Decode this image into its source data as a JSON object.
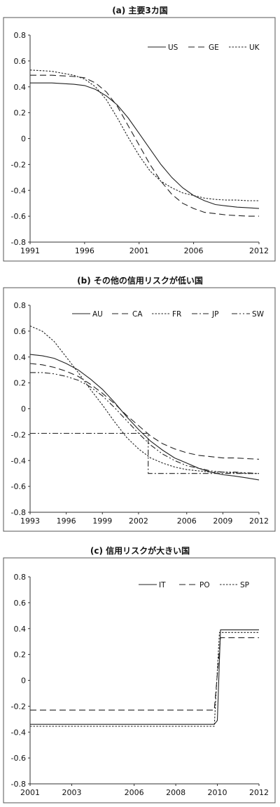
{
  "chart_data": [
    {
      "type": "line",
      "title": "(a) 主要3カ国",
      "xlabel": "",
      "ylabel": "",
      "xlim": [
        1991,
        2012
      ],
      "ylim": [
        -0.8,
        0.8
      ],
      "xticks": [
        "1991",
        "1996",
        "2001",
        "2006",
        "2012"
      ],
      "yticks": [
        "0.8",
        "0.6",
        "0.4",
        "0.2",
        "0",
        "-0.2",
        "-0.4",
        "-0.6",
        "-0.8"
      ],
      "legend": "top-right",
      "grid": false,
      "series": [
        {
          "name": "US",
          "style": "solid",
          "x": [
            1991,
            1993,
            1995,
            1996,
            1997,
            1998,
            1999,
            2000,
            2001,
            2002,
            2003,
            2004,
            2005,
            2006,
            2007,
            2008,
            2009,
            2010,
            2011,
            2012
          ],
          "y": [
            0.43,
            0.43,
            0.42,
            0.41,
            0.38,
            0.33,
            0.26,
            0.16,
            0.04,
            -0.08,
            -0.2,
            -0.3,
            -0.38,
            -0.44,
            -0.48,
            -0.51,
            -0.52,
            -0.53,
            -0.535,
            -0.54
          ]
        },
        {
          "name": "GE",
          "style": "dashed",
          "x": [
            1991,
            1993,
            1995,
            1996,
            1997,
            1998,
            1999,
            2000,
            2001,
            2002,
            2003,
            2004,
            2005,
            2006,
            2007,
            2008,
            2009,
            2010,
            2011,
            2012
          ],
          "y": [
            0.49,
            0.49,
            0.48,
            0.47,
            0.43,
            0.36,
            0.25,
            0.1,
            -0.05,
            -0.2,
            -0.33,
            -0.43,
            -0.5,
            -0.54,
            -0.57,
            -0.58,
            -0.59,
            -0.595,
            -0.6,
            -0.6
          ]
        },
        {
          "name": "UK",
          "style": "dotted",
          "x": [
            1991,
            1993,
            1995,
            1996,
            1997,
            1998,
            1999,
            2000,
            2001,
            2002,
            2003,
            2004,
            2005,
            2006,
            2007,
            2008,
            2009,
            2010,
            2011,
            2012
          ],
          "y": [
            0.53,
            0.52,
            0.49,
            0.46,
            0.4,
            0.3,
            0.16,
            0.01,
            -0.13,
            -0.25,
            -0.33,
            -0.38,
            -0.42,
            -0.44,
            -0.46,
            -0.47,
            -0.475,
            -0.475,
            -0.48,
            -0.48
          ]
        }
      ]
    },
    {
      "type": "line",
      "title": "(b) その他の信用リスクが低い国",
      "xlabel": "",
      "ylabel": "",
      "xlim": [
        1993,
        2012
      ],
      "ylim": [
        -0.8,
        0.8
      ],
      "xticks": [
        "1993",
        "1996",
        "1999",
        "2002",
        "2006",
        "2009",
        "2012"
      ],
      "yticks": [
        "0.8",
        "0.6",
        "0.4",
        "0.2",
        "0",
        "-0.2",
        "-0.4",
        "-0.6",
        "-0.8"
      ],
      "legend": "top-right",
      "grid": false,
      "series": [
        {
          "name": "AU",
          "style": "solid",
          "x": [
            1993,
            1994,
            1995,
            1996,
            1997,
            1998,
            1999,
            2000,
            2001,
            2002,
            2003,
            2004,
            2005,
            2006,
            2007,
            2008,
            2009,
            2010,
            2011,
            2012
          ],
          "y": [
            0.42,
            0.41,
            0.39,
            0.35,
            0.3,
            0.23,
            0.15,
            0.05,
            -0.06,
            -0.16,
            -0.25,
            -0.32,
            -0.38,
            -0.42,
            -0.46,
            -0.49,
            -0.51,
            -0.52,
            -0.535,
            -0.55
          ]
        },
        {
          "name": "CA",
          "style": "dashed",
          "x": [
            1993,
            1994,
            1995,
            1996,
            1997,
            1998,
            1999,
            2000,
            2001,
            2002,
            2003,
            2004,
            2005,
            2006,
            2007,
            2008,
            2009,
            2010,
            2011,
            2012
          ],
          "y": [
            0.35,
            0.34,
            0.32,
            0.29,
            0.25,
            0.19,
            0.12,
            0.04,
            -0.05,
            -0.13,
            -0.21,
            -0.27,
            -0.31,
            -0.34,
            -0.36,
            -0.37,
            -0.38,
            -0.38,
            -0.385,
            -0.39
          ]
        },
        {
          "name": "FR",
          "style": "dotted",
          "x": [
            1993,
            1994,
            1995,
            1996,
            1997,
            1998,
            1999,
            2000,
            2001,
            2002,
            2003,
            2004,
            2005,
            2006,
            2007,
            2008,
            2009,
            2010,
            2011,
            2012
          ],
          "y": [
            0.64,
            0.6,
            0.52,
            0.4,
            0.28,
            0.15,
            0.03,
            -0.1,
            -0.22,
            -0.31,
            -0.38,
            -0.42,
            -0.45,
            -0.47,
            -0.48,
            -0.49,
            -0.49,
            -0.495,
            -0.5,
            -0.5
          ]
        },
        {
          "name": "JP",
          "style": "dashdot",
          "x": [
            1993,
            2002,
            2002.8,
            2002.8,
            2012
          ],
          "y": [
            -0.19,
            -0.19,
            -0.19,
            -0.5,
            -0.5
          ]
        },
        {
          "name": "SW",
          "style": "dashdotdot",
          "x": [
            1993,
            1994,
            1995,
            1996,
            1997,
            1998,
            1999,
            2000,
            2001,
            2002,
            2003,
            2004,
            2005,
            2006,
            2007,
            2008,
            2009,
            2010,
            2011,
            2012
          ],
          "y": [
            0.28,
            0.28,
            0.27,
            0.25,
            0.22,
            0.17,
            0.1,
            0.01,
            -0.09,
            -0.19,
            -0.28,
            -0.35,
            -0.4,
            -0.44,
            -0.46,
            -0.48,
            -0.49,
            -0.49,
            -0.495,
            -0.5
          ]
        }
      ]
    },
    {
      "type": "line",
      "title": "(c) 信用リスクが大きい国",
      "xlabel": "",
      "ylabel": "",
      "xlim": [
        2001,
        2012
      ],
      "ylim": [
        -0.8,
        0.8
      ],
      "xticks": [
        "2001",
        "2003",
        "2006",
        "2008",
        "2010",
        "2012"
      ],
      "yticks": [
        "0.8",
        "0.6",
        "0.4",
        "0.2",
        "0",
        "-0.2",
        "-0.4",
        "-0.6",
        "-0.8"
      ],
      "legend": "top-right",
      "grid": false,
      "series": [
        {
          "name": "IT",
          "style": "solid",
          "x": [
            2001,
            2009.85,
            2010.0,
            2010.15,
            2012
          ],
          "y": [
            -0.34,
            -0.34,
            -0.31,
            0.39,
            0.39
          ]
        },
        {
          "name": "PO",
          "style": "dashed",
          "x": [
            2001,
            2009.85,
            2010.15,
            2012
          ],
          "y": [
            -0.23,
            -0.23,
            0.33,
            0.33
          ]
        },
        {
          "name": "SP",
          "style": "dotted",
          "x": [
            2001,
            2009.85,
            2010.1,
            2012
          ],
          "y": [
            -0.355,
            -0.355,
            0.37,
            0.37
          ]
        }
      ]
    }
  ]
}
